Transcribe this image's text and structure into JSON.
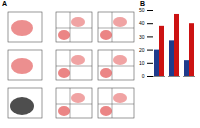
{
  "figure": {
    "panel_labels": [
      "A",
      "B"
    ]
  },
  "chart_data": {
    "type": "bar",
    "categories": [
      null,
      null,
      null
    ],
    "series": [
      {
        "color": "#1f3b8c",
        "values": [
          20,
          27,
          12
        ]
      },
      {
        "color": "#cc1212",
        "values": [
          38,
          47,
          40
        ]
      }
    ],
    "ylim": [
      0,
      50
    ],
    "yticks": [
      0,
      10,
      20,
      30,
      40,
      50
    ]
  }
}
